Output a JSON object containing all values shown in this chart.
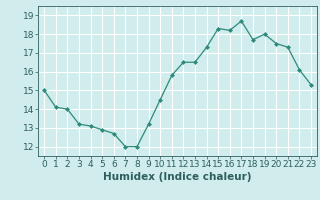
{
  "x": [
    0,
    1,
    2,
    3,
    4,
    5,
    6,
    7,
    8,
    9,
    10,
    11,
    12,
    13,
    14,
    15,
    16,
    17,
    18,
    19,
    20,
    21,
    22,
    23
  ],
  "y": [
    15.0,
    14.1,
    14.0,
    13.2,
    13.1,
    12.9,
    12.7,
    12.0,
    12.0,
    13.2,
    14.5,
    15.8,
    16.5,
    16.5,
    17.3,
    18.3,
    18.2,
    18.7,
    17.7,
    18.0,
    17.5,
    17.3,
    16.1,
    15.3
  ],
  "xlabel": "Humidex (Indice chaleur)",
  "ylim": [
    11.5,
    19.5
  ],
  "xlim": [
    -0.5,
    23.5
  ],
  "yticks": [
    12,
    13,
    14,
    15,
    16,
    17,
    18,
    19
  ],
  "xticks": [
    0,
    1,
    2,
    3,
    4,
    5,
    6,
    7,
    8,
    9,
    10,
    11,
    12,
    13,
    14,
    15,
    16,
    17,
    18,
    19,
    20,
    21,
    22,
    23
  ],
  "line_color": "#2e8b7a",
  "marker_color": "#2e8b7a",
  "bg_color": "#d0ecec",
  "grid_color": "#ffffff",
  "tick_label_color": "#2e5f5f",
  "xlabel_color": "#2e5f5f",
  "xlabel_fontsize": 7.5,
  "tick_fontsize": 6.5
}
